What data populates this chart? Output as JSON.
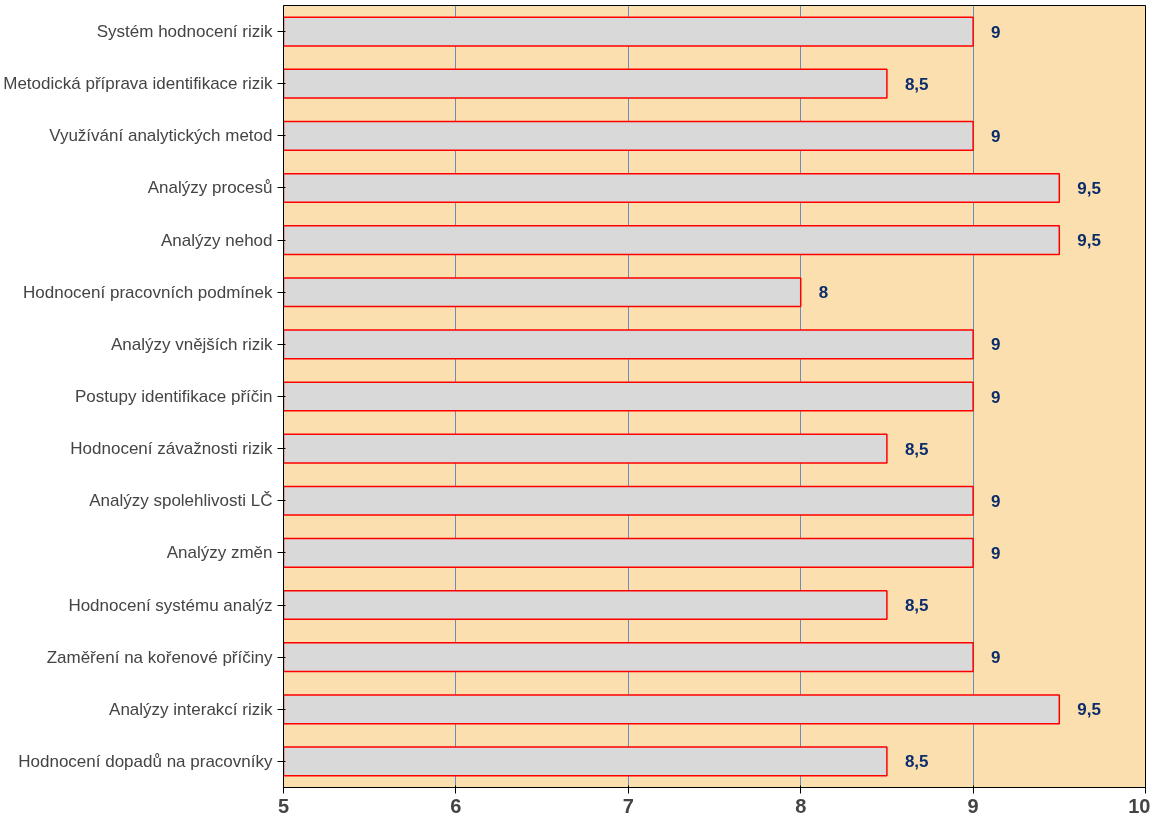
{
  "chart_data": {
    "type": "bar",
    "orientation": "horizontal",
    "categories": [
      "Systém hodnocení rizik",
      "Metodická příprava identifikace rizik",
      "Využívání analytických metod",
      "Analýzy procesů",
      "Analýzy nehod",
      "Hodnocení pracovních podmínek",
      "Analýzy vnějších rizik",
      "Postupy identifikace příčin",
      "Hodnocení závažnosti rizik",
      "Analýzy spolehlivosti LČ",
      "Analýzy změn",
      "Hodnocení systému analýz",
      "Zaměření na kořenové příčiny",
      "Analýzy interakcí rizik",
      "Hodnocení dopadů na pracovníky"
    ],
    "values": [
      9,
      8.5,
      9,
      9.5,
      9.5,
      8,
      9,
      9,
      8.5,
      9,
      9,
      8.5,
      9,
      9.5,
      8.5
    ],
    "color": "#d9d9d9",
    "xlim": [
      5,
      10
    ],
    "xticks": [
      5,
      6,
      7,
      8,
      9,
      10
    ],
    "value_labels": [
      "9",
      "8,5",
      "9",
      "9,5",
      "9,5",
      "8",
      "9",
      "9",
      "8,5",
      "9",
      "9",
      "8,5",
      "9",
      "9,5",
      "8,5"
    ],
    "grid": "x"
  }
}
